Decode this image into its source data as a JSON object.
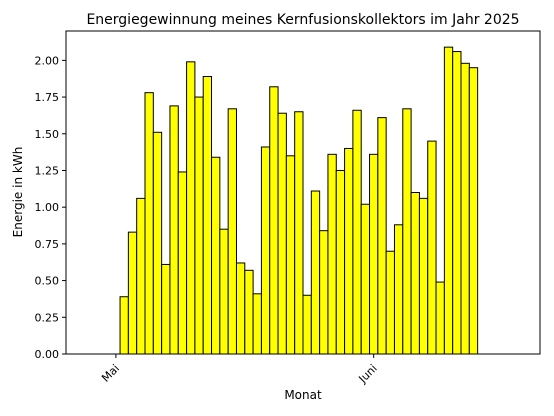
{
  "chart_data": {
    "type": "bar",
    "title": "Energiegewinnung meines Kernfusionskollektors im Jahr 2025",
    "xlabel": "Monat",
    "ylabel": "Energie in kWh",
    "x_tick_labels": [
      "Mai",
      "Juni"
    ],
    "x_tick_dates": [
      "2025-05-01",
      "2025-06-01"
    ],
    "y_ticks": [
      "0.00",
      "0.25",
      "0.50",
      "0.75",
      "1.00",
      "1.25",
      "1.50",
      "1.75",
      "2.00"
    ],
    "ylim": [
      0,
      2.2
    ],
    "xlim": [
      "2025-04-25",
      "2025-06-21"
    ],
    "grid": false,
    "bar_color": "#ffff00",
    "edge_color": "#000000",
    "dates": [
      "2025-04-30",
      "2025-05-01",
      "2025-05-02",
      "2025-05-03",
      "2025-05-04",
      "2025-05-05",
      "2025-05-06",
      "2025-05-07",
      "2025-05-08",
      "2025-05-09",
      "2025-05-10",
      "2025-05-11",
      "2025-05-12",
      "2025-05-13",
      "2025-05-14",
      "2025-05-15",
      "2025-05-16",
      "2025-05-17",
      "2025-05-18",
      "2025-05-19",
      "2025-05-20",
      "2025-05-21",
      "2025-05-22",
      "2025-05-23",
      "2025-05-24",
      "2025-05-25",
      "2025-05-26",
      "2025-05-27",
      "2025-05-28",
      "2025-05-29",
      "2025-05-30",
      "2025-05-31",
      "2025-06-01",
      "2025-06-02",
      "2025-06-03",
      "2025-06-04",
      "2025-06-05",
      "2025-06-06",
      "2025-06-07",
      "2025-06-08",
      "2025-06-09",
      "2025-06-10",
      "2025-06-11",
      "2025-06-12",
      "2025-06-13",
      "2025-06-14",
      "2025-06-15",
      "2025-06-16",
      "2025-06-17",
      "2025-06-18",
      "2025-06-19",
      "2025-06-20"
    ],
    "values": [
      0.0,
      0.0,
      0.39,
      0.83,
      1.06,
      1.78,
      1.51,
      0.61,
      1.69,
      1.24,
      1.99,
      1.75,
      1.89,
      1.34,
      0.85,
      1.67,
      0.62,
      0.57,
      0.41,
      1.41,
      1.82,
      1.64,
      1.35,
      1.65,
      0.4,
      1.11,
      0.84,
      1.36,
      1.25,
      1.4,
      1.66,
      1.02,
      1.36,
      1.61,
      0.7,
      0.88,
      1.67,
      1.1,
      1.06,
      1.45,
      0.49,
      2.09,
      2.06,
      1.98,
      1.95,
      0,
      0,
      0,
      0,
      0,
      0,
      0
    ]
  }
}
